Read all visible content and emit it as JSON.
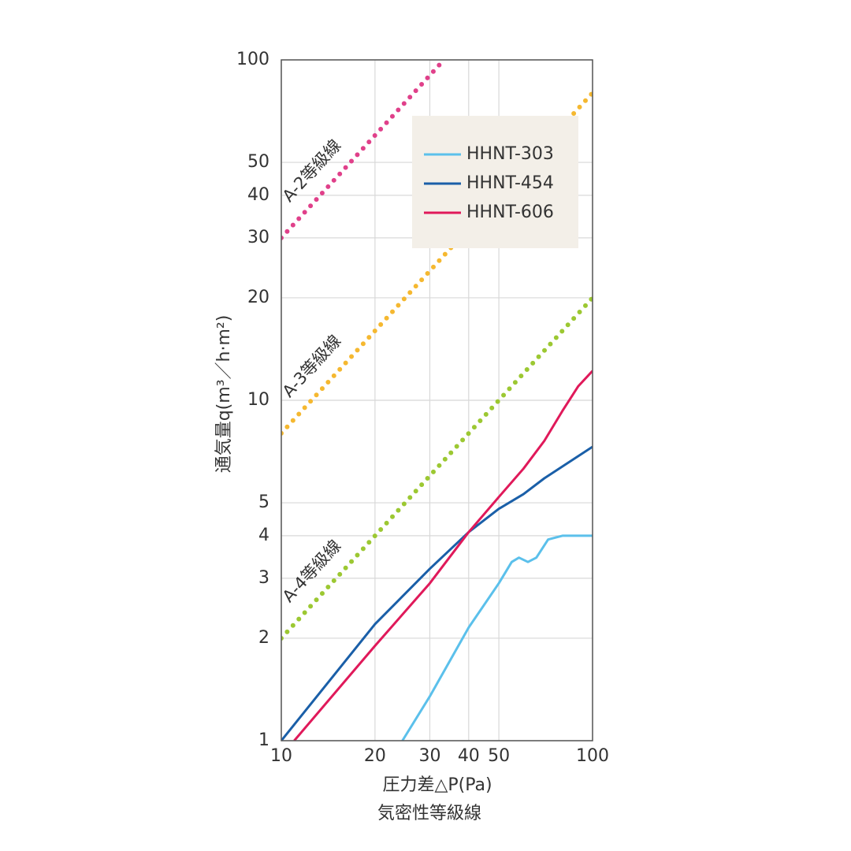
{
  "chart_data": {
    "type": "line",
    "xlabel": "圧力差△P(Pa)",
    "ylabel": "通気量q(m³／h·m²)",
    "caption": "気密性等級線",
    "xscale": "log",
    "yscale": "log",
    "grid": true,
    "legend": "upper right",
    "xlim": [
      10,
      100
    ],
    "ylim": [
      1,
      100
    ],
    "xticks": [
      10,
      20,
      30,
      40,
      50,
      100
    ],
    "yticks": [
      1,
      2,
      3,
      4,
      5,
      10,
      20,
      30,
      40,
      50,
      100
    ],
    "grade_lines": [
      {
        "name": "A-2等級線",
        "color": "#e0408a",
        "x": [
          10,
          33.3
        ],
        "values": [
          30,
          100
        ]
      },
      {
        "name": "A-3等級線",
        "color": "#f5b830",
        "x": [
          10,
          100
        ],
        "values": [
          8,
          80
        ]
      },
      {
        "name": "A-4等級線",
        "color": "#9cc832",
        "x": [
          10,
          100
        ],
        "values": [
          2,
          20
        ]
      }
    ],
    "series": [
      {
        "name": "HHNT-303",
        "color": "#5bc0eb",
        "x": [
          24.5,
          30,
          40,
          50,
          55,
          58,
          62,
          66,
          72,
          80,
          100
        ],
        "values": [
          1.0,
          1.35,
          2.15,
          2.9,
          3.35,
          3.45,
          3.35,
          3.45,
          3.9,
          4.0,
          4.0
        ]
      },
      {
        "name": "HHNT-454",
        "color": "#1a5fa8",
        "x": [
          10,
          20,
          30,
          40,
          50,
          60,
          70,
          100
        ],
        "values": [
          1.0,
          2.2,
          3.2,
          4.1,
          4.8,
          5.3,
          5.9,
          7.3
        ]
      },
      {
        "name": "HHNT-606",
        "color": "#e0195a",
        "x": [
          11,
          20,
          30,
          40,
          50,
          60,
          70,
          80,
          90,
          100
        ],
        "values": [
          1.0,
          1.9,
          2.9,
          4.1,
          5.2,
          6.3,
          7.6,
          9.3,
          11,
          12.2
        ]
      }
    ]
  }
}
